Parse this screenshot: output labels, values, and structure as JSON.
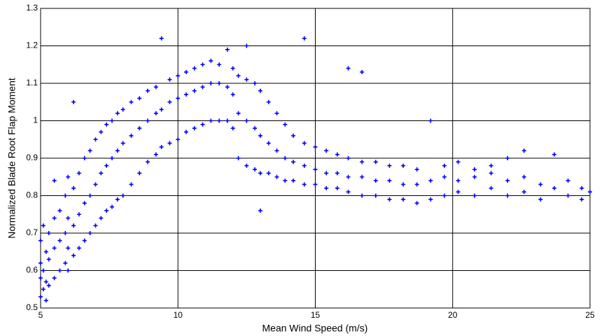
{
  "chart_data": {
    "type": "scatter",
    "x_label": "Mean Wind Speed (m/s)",
    "y_label": "Normalized Blade Root Flap Moment",
    "xlim": [
      5,
      25
    ],
    "xticks": [
      5,
      10,
      15,
      20,
      25
    ],
    "ylim": [
      0.5,
      1.3
    ],
    "yticks": [
      0.5,
      0.6,
      0.7,
      0.8,
      0.9,
      1,
      1.1,
      1.2,
      1.3
    ],
    "grid": true,
    "color": "#0000ff",
    "x": [
      5,
      5,
      5,
      5,
      5.1,
      5.1,
      5.1,
      5.2,
      5.2,
      5.2,
      5.3,
      5.3,
      5.3,
      5.5,
      5.5,
      5.5,
      5.5,
      5.7,
      5.7,
      5.7,
      5.9,
      5.9,
      5.9,
      6,
      6,
      6,
      6,
      6.2,
      6.2,
      6.2,
      6.2,
      6.4,
      6.4,
      6.4,
      6.6,
      6.6,
      6.6,
      6.8,
      6.8,
      6.8,
      7,
      7,
      7,
      7.2,
      7.2,
      7.2,
      7.4,
      7.4,
      7.4,
      7.6,
      7.6,
      7.6,
      7.8,
      7.8,
      7.8,
      8,
      8,
      8,
      8.3,
      8.3,
      8.3,
      8.6,
      8.6,
      8.6,
      8.9,
      8.9,
      8.9,
      9.2,
      9.2,
      9.2,
      9.4,
      9.4,
      9.4,
      9.7,
      9.7,
      9.7,
      10,
      10,
      10,
      10.3,
      10.3,
      10.3,
      10.6,
      10.6,
      10.6,
      10.9,
      10.9,
      10.9,
      11.2,
      11.2,
      11.2,
      11.5,
      11.5,
      11.5,
      11.8,
      11.8,
      11.8,
      12,
      12,
      12,
      12.2,
      12.2,
      12.2,
      12.5,
      12.5,
      12.5,
      12.5,
      12.8,
      12.8,
      12.8,
      13,
      13,
      13,
      13,
      13.3,
      13.3,
      13.3,
      13.6,
      13.6,
      13.6,
      13.9,
      13.9,
      13.9,
      14.2,
      14.2,
      14.2,
      14.6,
      14.6,
      14.6,
      14.6,
      15,
      15,
      15,
      15.4,
      15.4,
      15.4,
      15.8,
      15.8,
      15.8,
      16.2,
      16.2,
      16.2,
      16.2,
      16.7,
      16.7,
      16.7,
      16.7,
      17.2,
      17.2,
      17.2,
      17.7,
      17.7,
      17.7,
      18.2,
      18.2,
      18.2,
      18.7,
      18.7,
      18.7,
      19.2,
      19.2,
      19.2,
      19.7,
      19.7,
      19.7,
      20.2,
      20.2,
      20.2,
      20.8,
      20.8,
      20.8,
      21.4,
      21.4,
      21.4,
      22,
      22,
      22,
      22.6,
      22.6,
      22.6,
      23.2,
      23.2,
      23.7,
      23.7,
      24.2,
      24.2,
      24.7,
      24.7,
      25
    ],
    "values": [
      0.53,
      0.58,
      0.62,
      0.68,
      0.55,
      0.6,
      0.72,
      0.52,
      0.57,
      0.65,
      0.56,
      0.63,
      0.7,
      0.58,
      0.66,
      0.74,
      0.84,
      0.6,
      0.68,
      0.76,
      0.62,
      0.7,
      0.8,
      0.6,
      0.66,
      0.74,
      0.85,
      0.64,
      0.72,
      0.82,
      1.05,
      0.66,
      0.75,
      0.86,
      0.68,
      0.78,
      0.9,
      0.7,
      0.8,
      0.92,
      0.72,
      0.83,
      0.95,
      0.74,
      0.86,
      0.97,
      0.76,
      0.88,
      0.99,
      0.77,
      0.9,
      1.0,
      0.79,
      0.92,
      1.02,
      0.8,
      0.94,
      1.03,
      0.83,
      0.96,
      1.05,
      0.86,
      0.98,
      1.06,
      0.89,
      1.0,
      1.08,
      0.91,
      1.02,
      1.09,
      0.93,
      1.03,
      1.22,
      0.94,
      1.05,
      1.11,
      0.95,
      1.06,
      1.12,
      0.97,
      1.07,
      1.13,
      0.98,
      1.08,
      1.14,
      0.99,
      1.09,
      1.15,
      1.0,
      1.1,
      1.16,
      1.0,
      1.1,
      1.15,
      1.0,
      1.09,
      1.19,
      0.98,
      1.07,
      1.14,
      0.9,
      1.02,
      1.12,
      0.88,
      1.0,
      1.11,
      1.2,
      0.87,
      0.98,
      1.1,
      0.76,
      0.86,
      0.96,
      1.08,
      0.86,
      0.94,
      1.05,
      0.85,
      0.92,
      1.02,
      0.84,
      0.9,
      0.99,
      0.84,
      0.89,
      0.96,
      0.83,
      0.88,
      0.94,
      1.22,
      0.83,
      0.87,
      0.93,
      0.82,
      0.86,
      0.92,
      0.82,
      0.86,
      0.91,
      0.81,
      0.85,
      0.9,
      1.14,
      0.8,
      0.85,
      0.89,
      1.13,
      0.8,
      0.84,
      0.89,
      0.79,
      0.84,
      0.88,
      0.79,
      0.83,
      0.88,
      0.78,
      0.83,
      0.87,
      0.79,
      0.84,
      1.0,
      0.8,
      0.85,
      0.88,
      0.81,
      0.84,
      0.89,
      0.8,
      0.85,
      0.87,
      0.82,
      0.86,
      0.88,
      0.8,
      0.84,
      0.9,
      0.81,
      0.85,
      0.92,
      0.79,
      0.83,
      0.82,
      0.91,
      0.8,
      0.84,
      0.79,
      0.82,
      0.81
    ]
  }
}
